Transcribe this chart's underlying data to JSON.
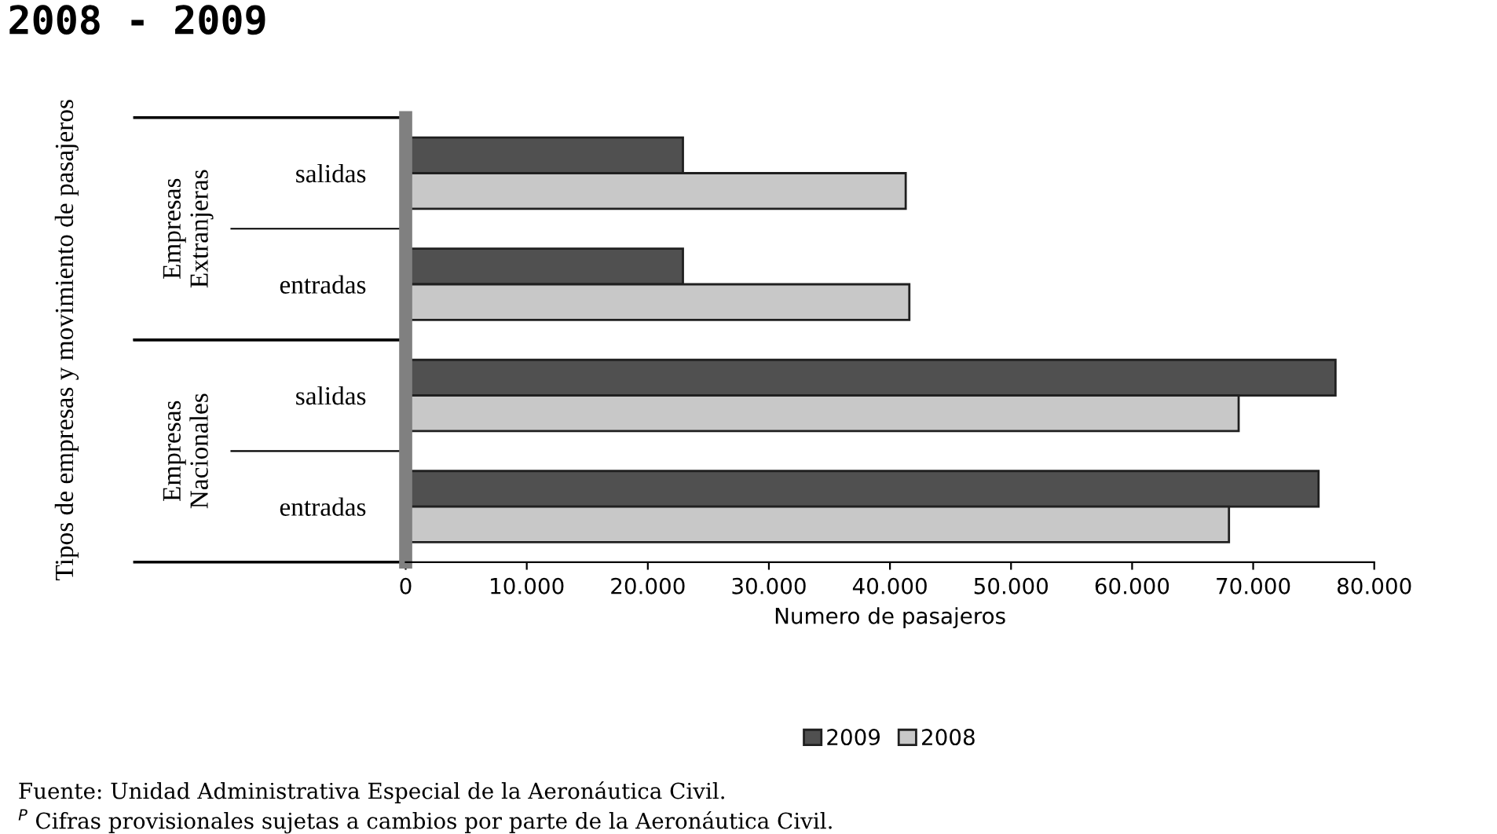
{
  "chart_data": {
    "type": "bar",
    "orientation": "horizontal",
    "title": "2008 - 2009",
    "categories": [
      "salidas",
      "entradas",
      "salidas",
      "entradas"
    ],
    "series": [
      {
        "name": "2009",
        "color": "#505050",
        "values": [
          22900,
          22900,
          76800,
          75400
        ]
      },
      {
        "name": "2008",
        "color": "#c8c8c8",
        "values": [
          41300,
          41600,
          68800,
          68000
        ]
      }
    ],
    "xlim": [
      0,
      80000
    ],
    "xticks": [
      0,
      {
        "value": 10000,
        "label": "10.000"
      },
      {
        "value": 20000,
        "label": "20.000"
      },
      {
        "value": 30000,
        "label": "30.000"
      },
      {
        "value": 40000,
        "label": "40.000"
      },
      {
        "value": 50000,
        "label": "50.000"
      },
      {
        "value": 60000,
        "label": "60.000"
      },
      {
        "value": 70000,
        "label": "70.000"
      },
      {
        "value": 80000,
        "label": "80.000"
      }
    ],
    "xlabel": "Numero de pasajeros",
    "annotations": [
      "Tipos de empresas y movimiento de pasajeros",
      "Empresas\nExtranjeras",
      "Empresas\nNacionales",
      "Fuente: Unidad Administrativa Especial de la Aeronáutica Civil.",
      "$^{P}$ Cifras provisionales sujetas a cambios por parte de la Aeronáutica Civil."
    ],
    "legend": "bottom",
    "grid": false
  }
}
